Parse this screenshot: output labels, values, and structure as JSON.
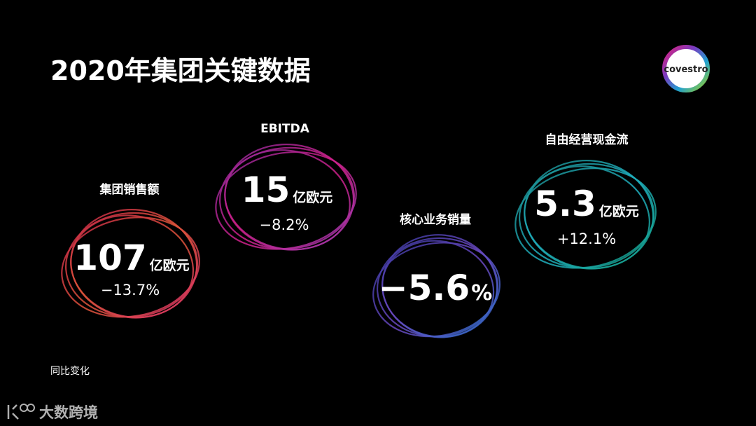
{
  "header": {
    "title": "2020年集团关键数据",
    "logo": "covestro"
  },
  "metrics": [
    {
      "label": "集团销售额",
      "value": "107",
      "unit": "亿欧元",
      "change": "−13.7%"
    },
    {
      "label": "EBITDA",
      "value": "15",
      "unit": "亿欧元",
      "change": "−8.2%"
    },
    {
      "label": "核心业务销量",
      "value": "−5.6",
      "unit": "%"
    },
    {
      "label": "自由经营现金流",
      "value": "5.3",
      "unit": "亿欧元",
      "change": "+12.1%"
    }
  ],
  "footnote": "同比变化",
  "watermark": "大数跨境"
}
